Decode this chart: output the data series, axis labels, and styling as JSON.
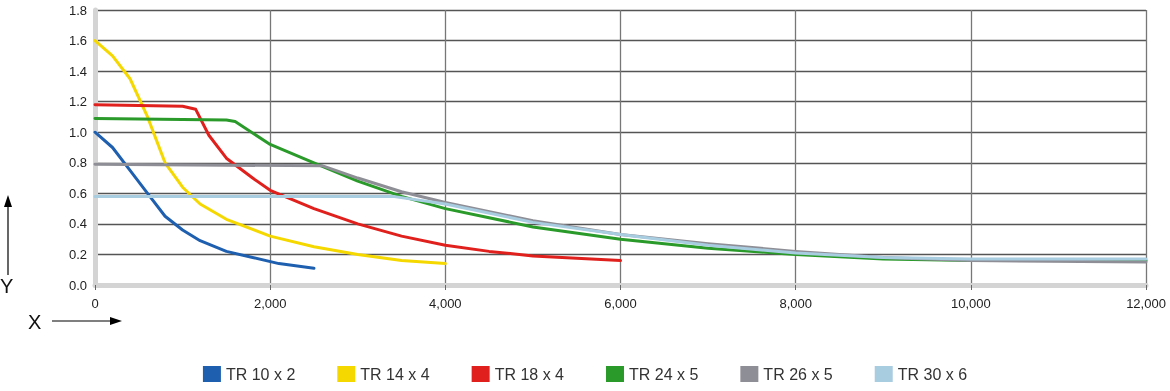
{
  "chart_data": {
    "type": "line",
    "xlabel": "X",
    "ylabel": "Y",
    "xlim": [
      0,
      12000
    ],
    "xticks": [
      {
        "value": 0,
        "label": "0"
      },
      {
        "value": 2000,
        "label": "2,000"
      },
      {
        "value": 4000,
        "label": "4,000"
      },
      {
        "value": 6000,
        "label": "6,000"
      },
      {
        "value": 8000,
        "label": "8,000"
      },
      {
        "value": 10000,
        "label": "10,000"
      },
      {
        "value": 12000,
        "label": "12,000"
      }
    ],
    "ylim": [
      0,
      1.8
    ],
    "yticks": [
      {
        "value": 0,
        "label": "0.0"
      },
      {
        "value": 0.2,
        "label": "0.2"
      },
      {
        "value": 0.4,
        "label": "0.4"
      },
      {
        "value": 0.6,
        "label": "0.6"
      },
      {
        "value": 0.8,
        "label": "0.8"
      },
      {
        "value": 1,
        "label": "1.0"
      },
      {
        "value": 1.2,
        "label": "1.2"
      },
      {
        "value": 1.4,
        "label": "1.4"
      },
      {
        "value": 1.6,
        "label": "1.6"
      },
      {
        "value": 1.8,
        "label": "1.8"
      }
    ],
    "grid": true,
    "legend": "bottom",
    "marker": "none",
    "line_style": "solid",
    "series": [
      {
        "name": "TR 10 x 2",
        "color": "#1f5fb0",
        "x": [
          0,
          200,
          400,
          600,
          800,
          1000,
          1200,
          1500,
          1800,
          2100,
          2500
        ],
        "values": [
          1.0,
          0.9,
          0.75,
          0.6,
          0.45,
          0.36,
          0.29,
          0.22,
          0.18,
          0.14,
          0.11
        ]
      },
      {
        "name": "TR 14 x 4",
        "color": "#f5d800",
        "x": [
          0,
          200,
          400,
          600,
          700,
          800,
          1000,
          1200,
          1500,
          2000,
          2500,
          3000,
          3500,
          4000
        ],
        "values": [
          1.6,
          1.5,
          1.35,
          1.1,
          0.95,
          0.8,
          0.64,
          0.53,
          0.43,
          0.32,
          0.25,
          0.2,
          0.16,
          0.14
        ]
      },
      {
        "name": "TR 18 x 4",
        "color": "#e0201c",
        "x": [
          0,
          1000,
          1150,
          1300,
          1500,
          1800,
          2000,
          2500,
          3000,
          3500,
          4000,
          4500,
          5000,
          6000
        ],
        "values": [
          1.18,
          1.17,
          1.15,
          0.98,
          0.83,
          0.7,
          0.62,
          0.5,
          0.4,
          0.32,
          0.26,
          0.22,
          0.19,
          0.16
        ]
      },
      {
        "name": "TR 24 x 5",
        "color": "#2a9a2a",
        "x": [
          0,
          1500,
          1600,
          2000,
          2500,
          3000,
          3500,
          4000,
          5000,
          6000,
          7000,
          8000,
          9000,
          10000,
          12000
        ],
        "values": [
          1.09,
          1.08,
          1.07,
          0.92,
          0.8,
          0.68,
          0.58,
          0.5,
          0.38,
          0.3,
          0.24,
          0.2,
          0.17,
          0.16,
          0.16
        ]
      },
      {
        "name": "TR 26 x 5",
        "color": "#8e8e96",
        "x": [
          0,
          2600,
          3000,
          3500,
          4000,
          5000,
          6000,
          7000,
          8000,
          9000,
          10000,
          12000
        ],
        "values": [
          0.79,
          0.78,
          0.7,
          0.61,
          0.54,
          0.42,
          0.33,
          0.27,
          0.22,
          0.18,
          0.16,
          0.15
        ]
      },
      {
        "name": "TR 30 x 6",
        "color": "#a8cce0",
        "x": [
          0,
          3400,
          4000,
          5000,
          6000,
          7000,
          8000,
          9000,
          10000,
          12000
        ],
        "values": [
          0.58,
          0.58,
          0.53,
          0.41,
          0.33,
          0.26,
          0.21,
          0.18,
          0.17,
          0.17
        ]
      }
    ]
  }
}
